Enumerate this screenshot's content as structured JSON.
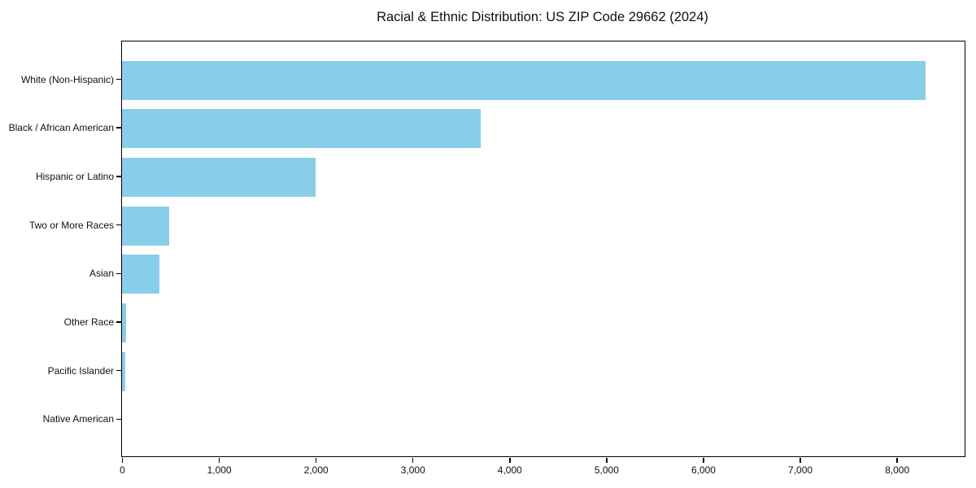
{
  "chart_data": {
    "type": "bar",
    "orientation": "horizontal",
    "title": "Racial & Ethnic Distribution: US ZIP Code 29662 (2024)",
    "categories": [
      "White (Non-Hispanic)",
      "Black / African American",
      "Hispanic or Latino",
      "Two or More Races",
      "Asian",
      "Other Race",
      "Pacific Islander",
      "Native American"
    ],
    "values": [
      8300,
      3700,
      2000,
      490,
      390,
      40,
      30,
      0
    ],
    "xlabel": "",
    "ylabel": "",
    "xlim": [
      0,
      8700
    ],
    "x_ticks": [
      {
        "value": 0,
        "label": "0"
      },
      {
        "value": 1000,
        "label": "1,000"
      },
      {
        "value": 2000,
        "label": "2,000"
      },
      {
        "value": 3000,
        "label": "3,000"
      },
      {
        "value": 4000,
        "label": "4,000"
      },
      {
        "value": 5000,
        "label": "5,000"
      },
      {
        "value": 6000,
        "label": "6,000"
      },
      {
        "value": 7000,
        "label": "7,000"
      },
      {
        "value": 8000,
        "label": "8,000"
      }
    ],
    "bar_color": "#87CEEB",
    "frame_color": "#000000",
    "grid": false,
    "legend_position": "none"
  }
}
